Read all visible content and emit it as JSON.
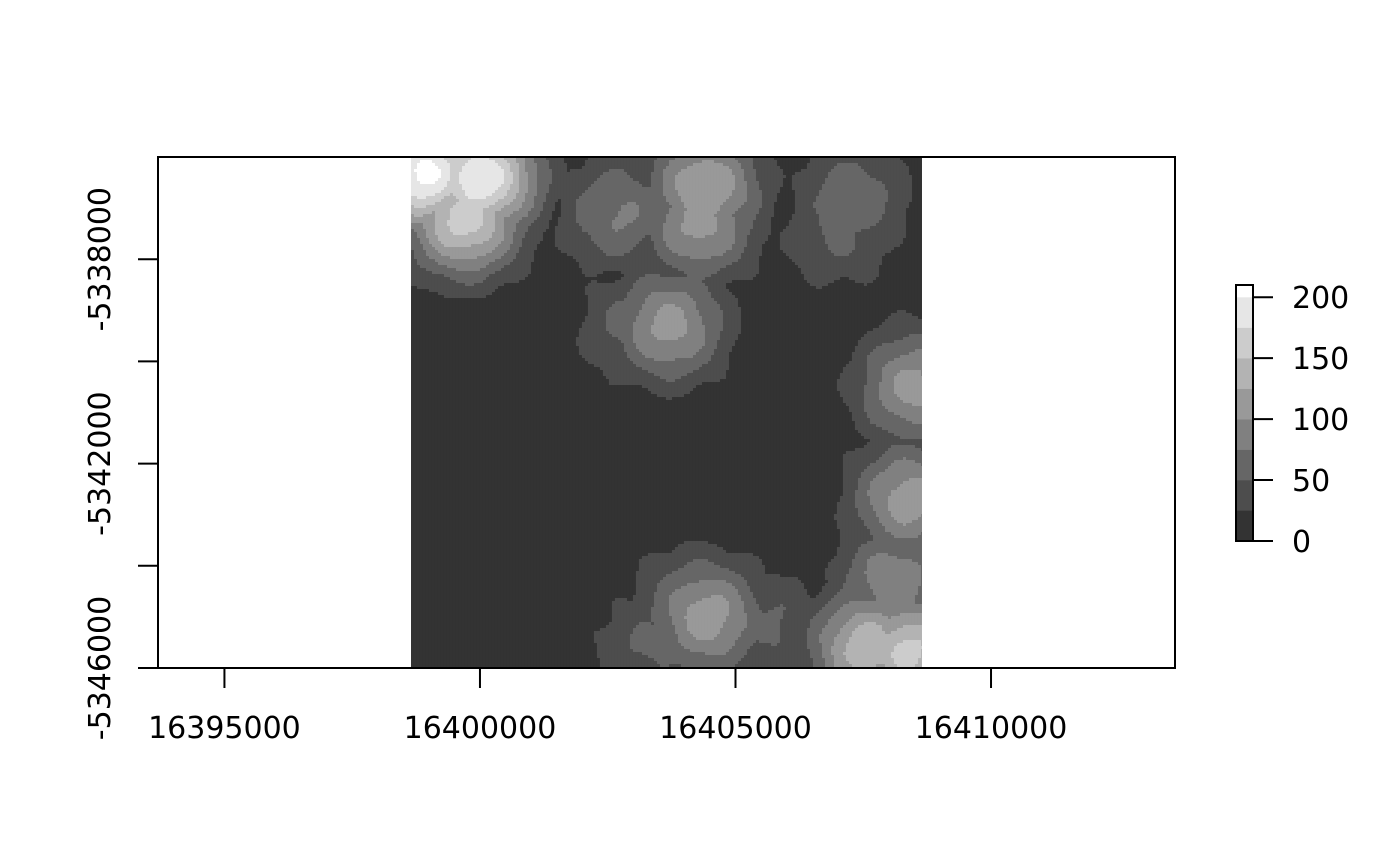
{
  "chart_data": {
    "type": "heatmap",
    "title": "",
    "xlabel": "",
    "ylabel": "",
    "xlim": [
      16393700,
      16413600
    ],
    "ylim": [
      -5346000,
      -5336000
    ],
    "x_ticks": [
      {
        "value": 16395000,
        "label": "16395000"
      },
      {
        "value": 16400000,
        "label": "16400000"
      },
      {
        "value": 16405000,
        "label": "16405000"
      },
      {
        "value": 16410000,
        "label": "16410000"
      }
    ],
    "y_ticks": [
      {
        "value": -5346000,
        "label": "-5346000"
      },
      {
        "value": -5344000,
        "label": ""
      },
      {
        "value": -5342000,
        "label": "-5342000"
      },
      {
        "value": -5340000,
        "label": ""
      },
      {
        "value": -5338000,
        "label": "-5338000"
      }
    ],
    "raster_extent": {
      "xmin": 16398650,
      "xmax": 16408650,
      "ymin": -5346000,
      "ymax": -5336000
    },
    "grid": false,
    "legend": {
      "placement": "right",
      "breaks": [
        0,
        25,
        50,
        75,
        100,
        125,
        150,
        175,
        200,
        210
      ],
      "colors": [
        "#333333",
        "#4d4d4d",
        "#666666",
        "#808080",
        "#999999",
        "#b3b3b3",
        "#cccccc",
        "#e6e6e6",
        "#ffffff"
      ],
      "ticks": [
        {
          "value": 0,
          "label": "0"
        },
        {
          "value": 50,
          "label": "50"
        },
        {
          "value": 100,
          "label": "100"
        },
        {
          "value": 150,
          "label": "150"
        },
        {
          "value": 200,
          "label": "200"
        }
      ]
    },
    "elevation_peaks": [
      {
        "x": 16398900,
        "y": -5336300,
        "value": 210
      },
      {
        "x": 16400000,
        "y": -5336400,
        "value": 200
      },
      {
        "x": 16399700,
        "y": -5337200,
        "value": 165
      },
      {
        "x": 16404400,
        "y": -5336600,
        "value": 125
      },
      {
        "x": 16404300,
        "y": -5337300,
        "value": 110
      },
      {
        "x": 16402700,
        "y": -5337100,
        "value": 80
      },
      {
        "x": 16407300,
        "y": -5336800,
        "value": 70
      },
      {
        "x": 16407000,
        "y": -5337500,
        "value": 55
      },
      {
        "x": 16403700,
        "y": -5339300,
        "value": 110
      },
      {
        "x": 16403000,
        "y": -5339300,
        "value": 60
      },
      {
        "x": 16408500,
        "y": -5340500,
        "value": 110
      },
      {
        "x": 16408400,
        "y": -5342700,
        "value": 115
      },
      {
        "x": 16408100,
        "y": -5344300,
        "value": 95
      },
      {
        "x": 16407600,
        "y": -5345600,
        "value": 145
      },
      {
        "x": 16408400,
        "y": -5345700,
        "value": 160
      },
      {
        "x": 16404450,
        "y": -5345000,
        "value": 115
      },
      {
        "x": 16404200,
        "y": -5344800,
        "value": 85
      },
      {
        "x": 16403300,
        "y": -5345600,
        "value": 55
      },
      {
        "x": 16405800,
        "y": -5345200,
        "value": 55
      }
    ]
  }
}
